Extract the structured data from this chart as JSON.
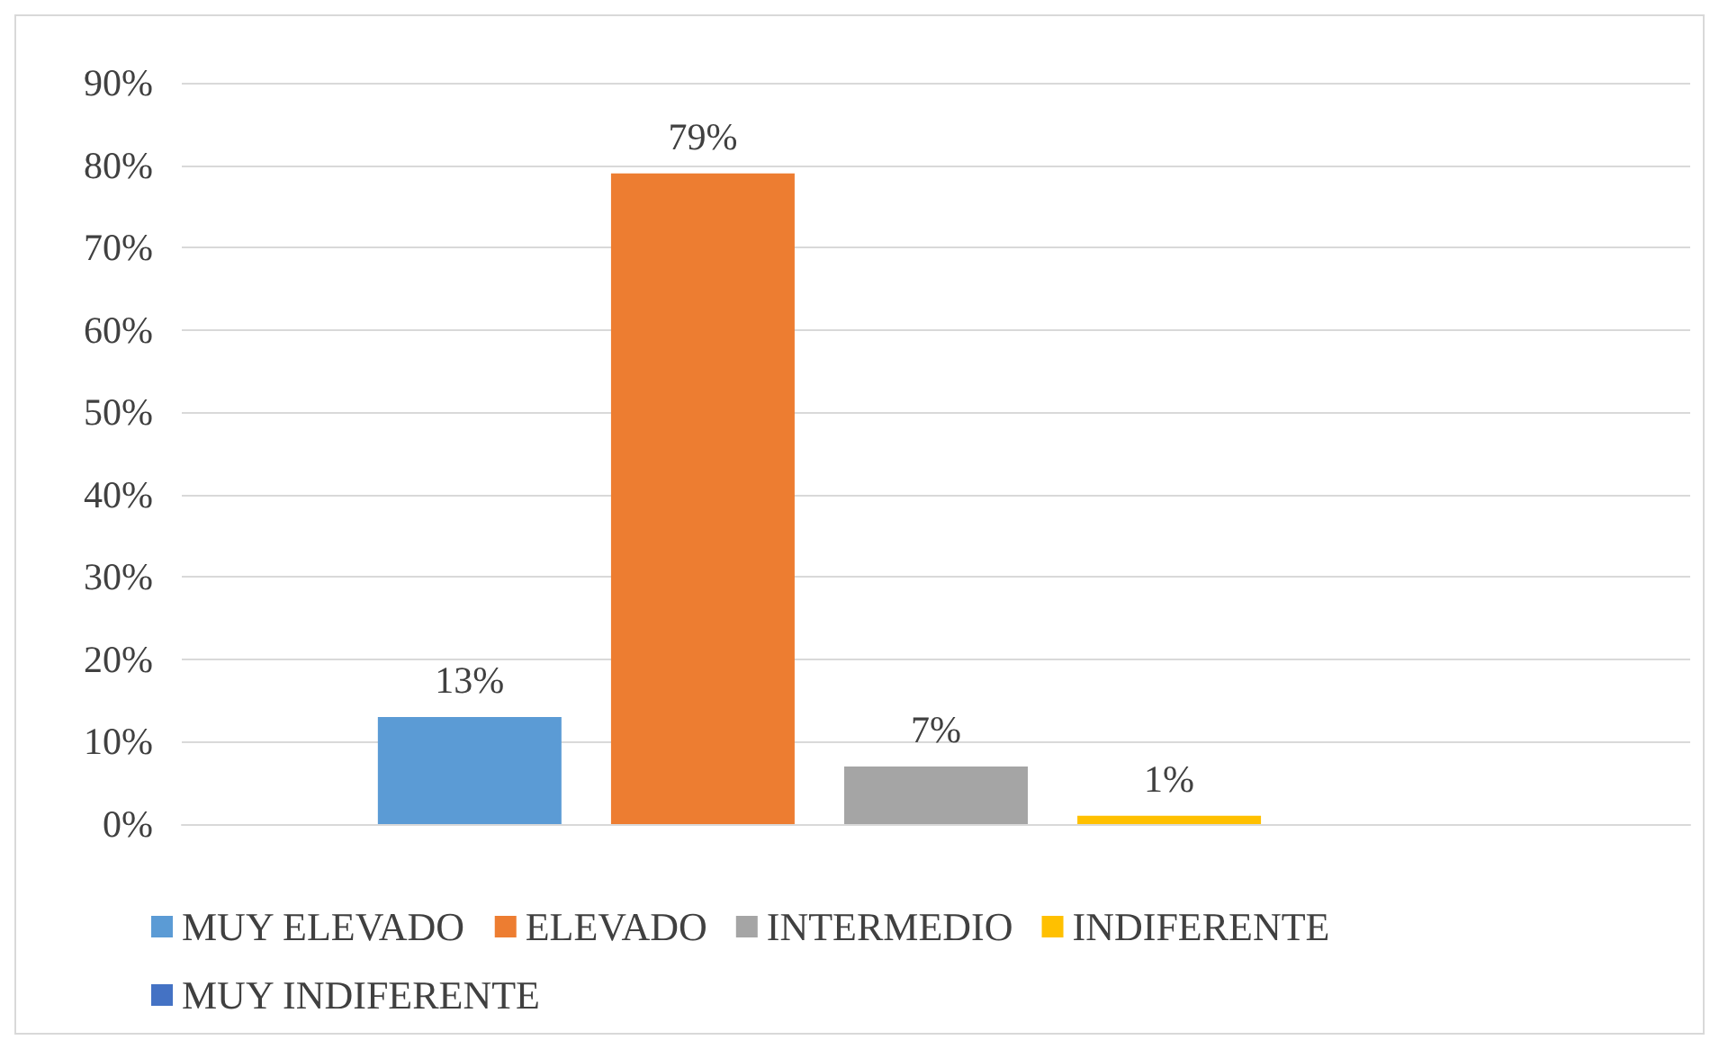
{
  "chart_data": {
    "type": "bar",
    "categories": [
      null
    ],
    "series": [
      {
        "name": "MUY ELEVADO",
        "color": "#5b9bd5",
        "values": [
          13
        ],
        "value_labels": [
          "13%"
        ]
      },
      {
        "name": "ELEVADO",
        "color": "#ed7d31",
        "values": [
          79
        ],
        "value_labels": [
          "79%"
        ]
      },
      {
        "name": "INTERMEDIO",
        "color": "#a5a5a5",
        "values": [
          7
        ],
        "value_labels": [
          "7%"
        ]
      },
      {
        "name": "INDIFERENTE",
        "color": "#ffc000",
        "values": [
          1
        ],
        "value_labels": [
          "1%"
        ]
      },
      {
        "name": "MUY INDIFERENTE",
        "color": "#4472c4",
        "values": [
          0
        ],
        "value_labels": [
          null
        ]
      }
    ],
    "ylim": [
      0,
      90
    ],
    "yticks": [
      {
        "value": 0,
        "label": "0%"
      },
      {
        "value": 10,
        "label": "10%"
      },
      {
        "value": 20,
        "label": "20%"
      },
      {
        "value": 30,
        "label": "30%"
      },
      {
        "value": 40,
        "label": "40%"
      },
      {
        "value": 50,
        "label": "50%"
      },
      {
        "value": 60,
        "label": "60%"
      },
      {
        "value": 70,
        "label": "70%"
      },
      {
        "value": 80,
        "label": "80%"
      },
      {
        "value": 90,
        "label": "90%"
      }
    ],
    "grid": "y",
    "legend": "bottom"
  }
}
